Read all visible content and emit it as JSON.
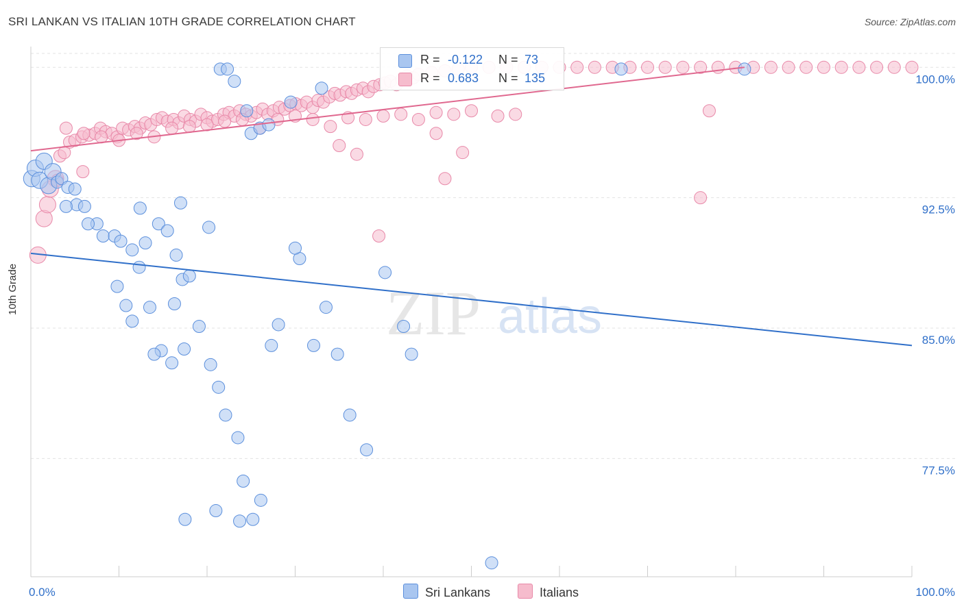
{
  "header": {
    "title": "SRI LANKAN VS ITALIAN 10TH GRADE CORRELATION CHART",
    "source": "Source: ZipAtlas.com"
  },
  "stats": {
    "rows": [
      {
        "r_label": "R =",
        "r_value": "-0.122",
        "n_label": "N =",
        "n_value": "73"
      },
      {
        "r_label": "R =",
        "r_value": "0.683",
        "n_label": "N =",
        "n_value": "135"
      }
    ]
  },
  "legend": {
    "items": [
      "Sri Lankans",
      "Italians"
    ]
  },
  "watermark": {
    "zip": "ZIP",
    "atlas": "atlas"
  },
  "colors": {
    "blue_fill": "#a9c6f0",
    "blue_stroke": "#5b8fdc",
    "blue_line": "#2f6fc9",
    "pink_fill": "#f6bccd",
    "pink_stroke": "#e888a8",
    "pink_line": "#e0688f",
    "tick_text": "#2f6fc9"
  },
  "chart_data": {
    "type": "scatter",
    "title": "SRI LANKAN VS ITALIAN 10TH GRADE CORRELATION CHART",
    "xlabel": "",
    "ylabel": "10th Grade",
    "xlim": [
      0,
      100
    ],
    "ylim": [
      70.7,
      100.8
    ],
    "x_tick_labels": [
      "0.0%",
      "100.0%"
    ],
    "y_ticks": [
      77.5,
      85.0,
      92.5,
      100.0
    ],
    "y_tick_labels": [
      "77.5%",
      "85.0%",
      "92.5%",
      "100.0%"
    ],
    "grid": true,
    "series": [
      {
        "name": "Sri Lankans",
        "r": -0.122,
        "n": 73,
        "trend": {
          "x": [
            0,
            100
          ],
          "y": [
            89.3,
            84.0
          ]
        },
        "points": [
          [
            0.1,
            93.6
          ],
          [
            0.5,
            94.2
          ],
          [
            1.0,
            93.5
          ],
          [
            1.5,
            94.6
          ],
          [
            2.0,
            93.2
          ],
          [
            2.5,
            94.0
          ],
          [
            3.0,
            93.4
          ],
          [
            3.5,
            93.6
          ],
          [
            4.2,
            93.1
          ],
          [
            5.2,
            92.1
          ],
          [
            6.1,
            92.0
          ],
          [
            4.0,
            92.0
          ],
          [
            7.5,
            91.0
          ],
          [
            8.2,
            90.3
          ],
          [
            9.5,
            90.3
          ],
          [
            10.2,
            90.0
          ],
          [
            11.5,
            89.5
          ],
          [
            12.4,
            91.9
          ],
          [
            13.0,
            89.9
          ],
          [
            14.5,
            91.0
          ],
          [
            15.5,
            90.6
          ],
          [
            16.5,
            89.2
          ],
          [
            17.2,
            87.8
          ],
          [
            9.8,
            87.4
          ],
          [
            10.8,
            86.3
          ],
          [
            11.5,
            85.4
          ],
          [
            12.3,
            88.5
          ],
          [
            14.8,
            83.7
          ],
          [
            16.3,
            86.4
          ],
          [
            17.4,
            83.8
          ],
          [
            19.1,
            85.1
          ],
          [
            20.4,
            82.9
          ],
          [
            21.3,
            81.6
          ],
          [
            22.1,
            80.0
          ],
          [
            23.5,
            78.7
          ],
          [
            24.1,
            76.2
          ],
          [
            25.2,
            74.0
          ],
          [
            26.1,
            75.1
          ],
          [
            27.3,
            84.0
          ],
          [
            28.1,
            85.2
          ],
          [
            30.5,
            89.0
          ],
          [
            32.1,
            84.0
          ],
          [
            33.5,
            86.2
          ],
          [
            34.8,
            83.5
          ],
          [
            36.2,
            80.0
          ],
          [
            38.1,
            78.0
          ],
          [
            40.2,
            88.2
          ],
          [
            42.3,
            85.1
          ],
          [
            43.2,
            83.5
          ],
          [
            17.5,
            74.0
          ],
          [
            21.0,
            74.5
          ],
          [
            23.7,
            73.9
          ],
          [
            6.5,
            91.0
          ],
          [
            5.0,
            93.0
          ],
          [
            25.0,
            96.2
          ],
          [
            24.5,
            97.5
          ],
          [
            26.0,
            96.5
          ],
          [
            21.5,
            99.9
          ],
          [
            22.3,
            99.9
          ],
          [
            23.1,
            99.2
          ],
          [
            17.0,
            92.2
          ],
          [
            20.2,
            90.8
          ],
          [
            18.0,
            88.0
          ],
          [
            16.0,
            83.0
          ],
          [
            14.0,
            83.5
          ],
          [
            13.5,
            86.2
          ],
          [
            33.0,
            98.8
          ],
          [
            29.5,
            98.0
          ],
          [
            27.0,
            96.7
          ],
          [
            30.0,
            89.6
          ],
          [
            67.0,
            99.9
          ],
          [
            81.0,
            99.9
          ],
          [
            52.3,
            71.5
          ]
        ]
      },
      {
        "name": "Italians",
        "r": 0.683,
        "n": 135,
        "trend": {
          "x": [
            0,
            81
          ],
          "y": [
            95.2,
            100.0
          ]
        },
        "points": [
          [
            0.8,
            89.2
          ],
          [
            1.5,
            91.3
          ],
          [
            1.9,
            92.1
          ],
          [
            2.8,
            93.6
          ],
          [
            3.3,
            94.9
          ],
          [
            3.8,
            95.1
          ],
          [
            4.4,
            95.7
          ],
          [
            5.0,
            95.8
          ],
          [
            5.8,
            96.0
          ],
          [
            6.6,
            96.1
          ],
          [
            7.3,
            96.2
          ],
          [
            7.9,
            96.5
          ],
          [
            8.5,
            96.3
          ],
          [
            9.2,
            96.2
          ],
          [
            9.8,
            96.0
          ],
          [
            10.4,
            96.5
          ],
          [
            11.1,
            96.4
          ],
          [
            11.8,
            96.6
          ],
          [
            12.4,
            96.5
          ],
          [
            13.0,
            96.8
          ],
          [
            13.6,
            96.7
          ],
          [
            14.3,
            97.0
          ],
          [
            14.9,
            97.1
          ],
          [
            15.5,
            96.9
          ],
          [
            16.2,
            97.0
          ],
          [
            16.8,
            96.8
          ],
          [
            17.4,
            97.2
          ],
          [
            18.1,
            97.0
          ],
          [
            18.7,
            96.9
          ],
          [
            19.3,
            97.3
          ],
          [
            20.0,
            97.1
          ],
          [
            20.6,
            96.9
          ],
          [
            21.2,
            97.0
          ],
          [
            21.9,
            97.3
          ],
          [
            22.5,
            97.4
          ],
          [
            23.1,
            97.2
          ],
          [
            23.7,
            97.5
          ],
          [
            24.4,
            97.3
          ],
          [
            25.0,
            97.2
          ],
          [
            25.6,
            97.4
          ],
          [
            26.3,
            97.6
          ],
          [
            26.9,
            97.3
          ],
          [
            27.5,
            97.5
          ],
          [
            28.2,
            97.7
          ],
          [
            28.8,
            97.6
          ],
          [
            29.4,
            97.8
          ],
          [
            30.1,
            97.9
          ],
          [
            30.7,
            97.8
          ],
          [
            31.3,
            98.0
          ],
          [
            32.0,
            97.7
          ],
          [
            32.6,
            98.1
          ],
          [
            33.2,
            98.0
          ],
          [
            33.9,
            98.3
          ],
          [
            34.5,
            98.5
          ],
          [
            35.1,
            98.4
          ],
          [
            35.8,
            98.6
          ],
          [
            36.4,
            98.5
          ],
          [
            37.0,
            98.7
          ],
          [
            37.7,
            98.8
          ],
          [
            38.3,
            98.6
          ],
          [
            38.9,
            98.9
          ],
          [
            39.6,
            99.0
          ],
          [
            40.2,
            99.1
          ],
          [
            40.8,
            99.2
          ],
          [
            41.5,
            99.0
          ],
          [
            42.1,
            99.3
          ],
          [
            42.7,
            99.5
          ],
          [
            43.4,
            99.4
          ],
          [
            44.0,
            99.6
          ],
          [
            45.5,
            99.7
          ],
          [
            47.0,
            99.8
          ],
          [
            48.5,
            99.9
          ],
          [
            50.0,
            100.0
          ],
          [
            52.0,
            100.0
          ],
          [
            54.0,
            100.0
          ],
          [
            56.0,
            100.0
          ],
          [
            58.0,
            100.0
          ],
          [
            60.0,
            100.0
          ],
          [
            62.0,
            100.0
          ],
          [
            64.0,
            100.0
          ],
          [
            66.0,
            100.0
          ],
          [
            68.0,
            100.0
          ],
          [
            70.0,
            100.0
          ],
          [
            72.0,
            100.0
          ],
          [
            74.0,
            100.0
          ],
          [
            76.0,
            100.0
          ],
          [
            78.0,
            100.0
          ],
          [
            80.0,
            100.0
          ],
          [
            82.0,
            100.0
          ],
          [
            84.0,
            100.0
          ],
          [
            86.0,
            100.0
          ],
          [
            88.0,
            100.0
          ],
          [
            90.0,
            100.0
          ],
          [
            92.0,
            100.0
          ],
          [
            94.0,
            100.0
          ],
          [
            96.0,
            100.0
          ],
          [
            98.0,
            100.0
          ],
          [
            100.0,
            100.0
          ],
          [
            4.0,
            96.5
          ],
          [
            6.0,
            96.2
          ],
          [
            8.0,
            96.0
          ],
          [
            10.0,
            95.8
          ],
          [
            12.0,
            96.2
          ],
          [
            14.0,
            96.0
          ],
          [
            16.0,
            96.5
          ],
          [
            18.0,
            96.6
          ],
          [
            20.0,
            96.7
          ],
          [
            22.0,
            96.9
          ],
          [
            24.0,
            97.0
          ],
          [
            26.0,
            96.5
          ],
          [
            28.0,
            97.0
          ],
          [
            30.0,
            97.2
          ],
          [
            32.0,
            97.0
          ],
          [
            34.0,
            96.6
          ],
          [
            36.0,
            97.1
          ],
          [
            38.0,
            97.0
          ],
          [
            40.0,
            97.2
          ],
          [
            42.0,
            97.3
          ],
          [
            44.0,
            97.0
          ],
          [
            46.0,
            97.4
          ],
          [
            48.0,
            97.3
          ],
          [
            50.0,
            97.5
          ],
          [
            35.0,
            95.5
          ],
          [
            37.0,
            95.0
          ],
          [
            39.5,
            90.3
          ],
          [
            46.0,
            96.2
          ],
          [
            49.0,
            95.1
          ],
          [
            47.0,
            93.6
          ],
          [
            76.0,
            92.5
          ],
          [
            77.0,
            97.5
          ],
          [
            53.0,
            97.2
          ],
          [
            55.0,
            97.3
          ],
          [
            2.2,
            93.0
          ],
          [
            5.9,
            94.0
          ],
          [
            3.0,
            93.5
          ]
        ]
      }
    ]
  }
}
